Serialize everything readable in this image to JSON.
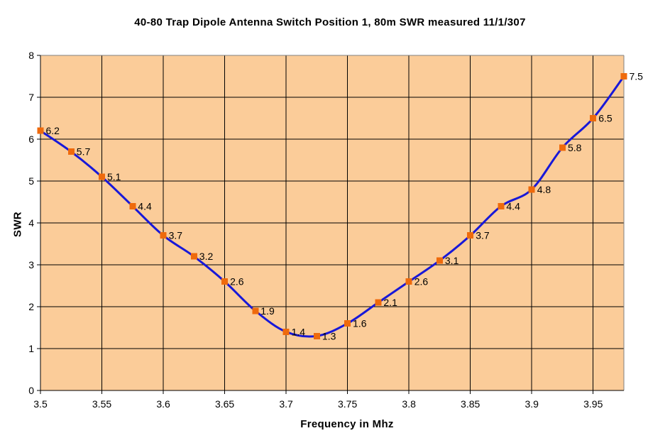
{
  "chart_data": {
    "type": "line",
    "title": "40-80 Trap Dipole Antenna Switch Position 1, 80m SWR measured 11/1/307",
    "xlabel": "Frequency in Mhz",
    "ylabel": "SWR",
    "x": [
      3.5,
      3.525,
      3.55,
      3.575,
      3.6,
      3.625,
      3.65,
      3.675,
      3.7,
      3.725,
      3.75,
      3.775,
      3.8,
      3.825,
      3.85,
      3.875,
      3.9,
      3.925,
      3.95,
      3.975
    ],
    "series": [
      {
        "name": "SWR",
        "values": [
          6.2,
          5.7,
          5.1,
          4.4,
          3.7,
          3.2,
          2.6,
          1.9,
          1.4,
          1.3,
          1.6,
          2.1,
          2.6,
          3.1,
          3.7,
          4.4,
          4.8,
          5.8,
          6.5,
          7.5
        ]
      }
    ],
    "point_labels": [
      "6.2",
      "5.7",
      "5.1",
      "4.4",
      "3.7",
      "3.2",
      "2.6",
      "1.9",
      "1.4",
      "1.3",
      "1.6",
      "2.1",
      "2.6",
      "3.1",
      "3.7",
      "4.4",
      "4.8",
      "5.8",
      "6.5",
      "7.5"
    ],
    "xlim": [
      3.5,
      3.975
    ],
    "ylim": [
      0,
      8
    ],
    "x_tick_values": [
      3.5,
      3.55,
      3.6,
      3.65,
      3.7,
      3.75,
      3.8,
      3.85,
      3.9,
      3.95
    ],
    "x_tick_labels": [
      "3.5",
      "3.55",
      "3.6",
      "3.65",
      "3.7",
      "3.75",
      "3.8",
      "3.85",
      "3.9",
      "3.95"
    ],
    "y_tick_values": [
      0,
      1,
      2,
      3,
      4,
      5,
      6,
      7,
      8
    ],
    "y_tick_labels": [
      "0",
      "1",
      "2",
      "3",
      "4",
      "5",
      "6",
      "7",
      "8"
    ],
    "grid": true,
    "legend": "none",
    "smooth_line": true
  },
  "colors": {
    "page_bg": "#FFFFFF",
    "plot_bg": "#FBCC99",
    "line": "#1818D8",
    "marker": "#EF6A0C",
    "gridline": "#000000",
    "plot_border": "#808080",
    "text": "#000000"
  }
}
